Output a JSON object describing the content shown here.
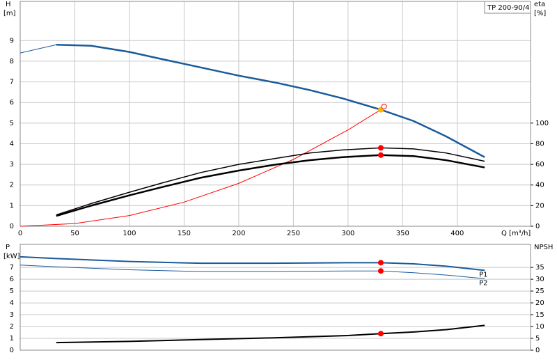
{
  "chart_data": [
    {
      "type": "line",
      "title": "TP 200-90/4",
      "ylabel": "H",
      "yunit": "[m]",
      "y2label": "eta",
      "y2unit": "[%]",
      "xlabel": "Q [m³/h]",
      "xlim": [
        0,
        467
      ],
      "xticks": [
        0,
        50,
        100,
        150,
        200,
        250,
        300,
        350,
        400
      ],
      "ylim": [
        0,
        10.9
      ],
      "yticks": [
        0,
        1,
        2,
        3,
        4,
        5,
        6,
        7,
        8,
        9
      ],
      "y2lim": [
        0,
        218
      ],
      "y2ticks": [
        0,
        20,
        40,
        60,
        80,
        100
      ],
      "grid": true,
      "series": [
        {
          "color": "#1a5a9a",
          "width": 1,
          "axis": "y",
          "x": [
            0,
            33
          ],
          "values": [
            8.4,
            8.8
          ]
        },
        {
          "color": "#1a5a9a",
          "width": 2.5,
          "axis": "y",
          "x": [
            33,
            65,
            100,
            130,
            165,
            200,
            235,
            265,
            295,
            330,
            360,
            390,
            425
          ],
          "values": [
            8.8,
            8.75,
            8.45,
            8.1,
            7.7,
            7.3,
            6.95,
            6.6,
            6.2,
            5.65,
            5.1,
            4.35,
            3.35
          ]
        },
        {
          "color": "#ff0000",
          "width": 1,
          "axis": "y",
          "x": [
            0,
            50,
            100,
            150,
            200,
            250,
            300,
            333
          ],
          "values": [
            0,
            0.13,
            0.52,
            1.17,
            2.08,
            3.24,
            4.67,
            5.75
          ]
        },
        {
          "color": "#000000",
          "width": 1.5,
          "axis": "y2",
          "x": [
            33,
            65,
            100,
            130,
            165,
            200,
            235,
            265,
            295,
            330,
            360,
            390,
            425
          ],
          "values": [
            11,
            22,
            33,
            42,
            52,
            60,
            66,
            71,
            74,
            76,
            75,
            71,
            63
          ]
        },
        {
          "color": "#000000",
          "width": 2.5,
          "axis": "y2",
          "x": [
            33,
            65,
            100,
            130,
            165,
            200,
            235,
            265,
            295,
            330,
            360,
            390,
            425
          ],
          "values": [
            10,
            20,
            30,
            38,
            47,
            54,
            60,
            64,
            67,
            69,
            68,
            64,
            57
          ]
        }
      ],
      "points": [
        {
          "x": 330,
          "y": 76,
          "axis": "y2",
          "color": "#ff0000"
        },
        {
          "x": 330,
          "y": 69,
          "axis": "y2",
          "color": "#ff0000"
        },
        {
          "x": 330,
          "y": 5.65,
          "axis": "y",
          "color": "#f5b800"
        },
        {
          "x": 333,
          "y": 5.8,
          "axis": "y",
          "color": "#ff0000",
          "hollow": true
        }
      ]
    },
    {
      "type": "line",
      "ylabel": "P",
      "yunit": "[kW]",
      "y2label": "NPSH",
      "xlim": [
        0,
        467
      ],
      "ylim": [
        0,
        8.95
      ],
      "yticks": [
        0,
        1,
        2,
        3,
        4,
        5,
        6,
        7
      ],
      "y2lim": [
        0,
        44.75
      ],
      "y2ticks": [
        0,
        5,
        10,
        15,
        20,
        25,
        30,
        35
      ],
      "grid": true,
      "series": [
        {
          "name": "P1",
          "color": "#1a5a9a",
          "width": 2,
          "axis": "y",
          "x": [
            0,
            33,
            100,
            165,
            230,
            300,
            330,
            360,
            390,
            425
          ],
          "values": [
            7.9,
            7.75,
            7.5,
            7.35,
            7.35,
            7.4,
            7.4,
            7.3,
            7.1,
            6.75
          ]
        },
        {
          "name": "P2",
          "color": "#1a5a9a",
          "width": 1,
          "axis": "y",
          "x": [
            0,
            33,
            100,
            165,
            230,
            300,
            330,
            360,
            390,
            425
          ],
          "values": [
            7.2,
            7.05,
            6.8,
            6.65,
            6.65,
            6.7,
            6.7,
            6.55,
            6.35,
            6.05
          ]
        },
        {
          "color": "#000000",
          "width": 2,
          "axis": "y2",
          "x": [
            33,
            100,
            165,
            230,
            300,
            330,
            360,
            390,
            425
          ],
          "values": [
            3.2,
            3.7,
            4.5,
            5.2,
            6.2,
            7,
            7.7,
            8.7,
            10.5
          ]
        }
      ],
      "points": [
        {
          "x": 330,
          "y": 7.4,
          "axis": "y",
          "color": "#ff0000"
        },
        {
          "x": 330,
          "y": 6.7,
          "axis": "y",
          "color": "#ff0000"
        },
        {
          "x": 330,
          "y": 7,
          "axis": "y2",
          "color": "#ff0000"
        }
      ]
    }
  ]
}
